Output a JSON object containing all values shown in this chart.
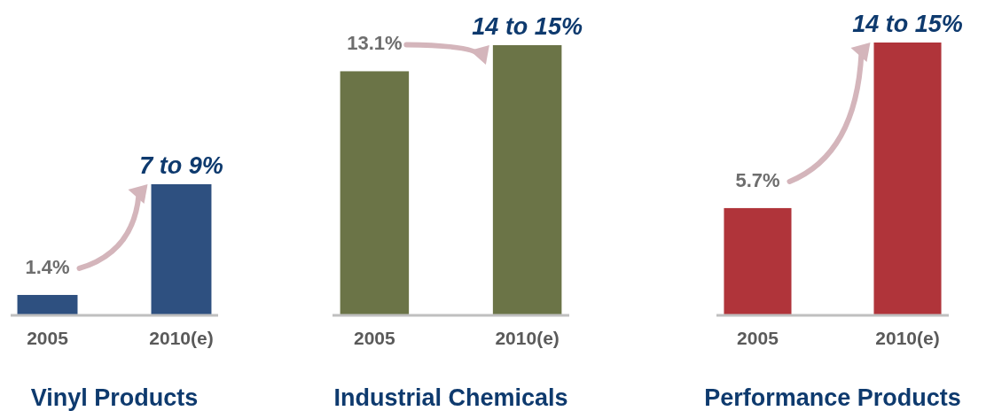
{
  "chart_data": [
    {
      "type": "bar",
      "categories": [
        "2005",
        "2010(e)"
      ],
      "values": [
        1.4,
        9
      ],
      "color": "#2e5080",
      "value_labels": [
        "1.4%",
        "7 to 9%"
      ],
      "xlabel": "Vinyl Products"
    },
    {
      "type": "bar",
      "categories": [
        "2005",
        "2010(e)"
      ],
      "values": [
        13.1,
        14.5
      ],
      "color": "#6b7447",
      "value_labels": [
        "13.1%",
        "14 to 15%"
      ],
      "xlabel": "Industrial Chemicals"
    },
    {
      "type": "bar",
      "categories": [
        "2005",
        "2010(e)"
      ],
      "values": [
        5.7,
        14.5
      ],
      "color": "#b0343a",
      "value_labels": [
        "5.7%",
        "14 to 15%"
      ],
      "xlabel": "Performance Products"
    }
  ]
}
